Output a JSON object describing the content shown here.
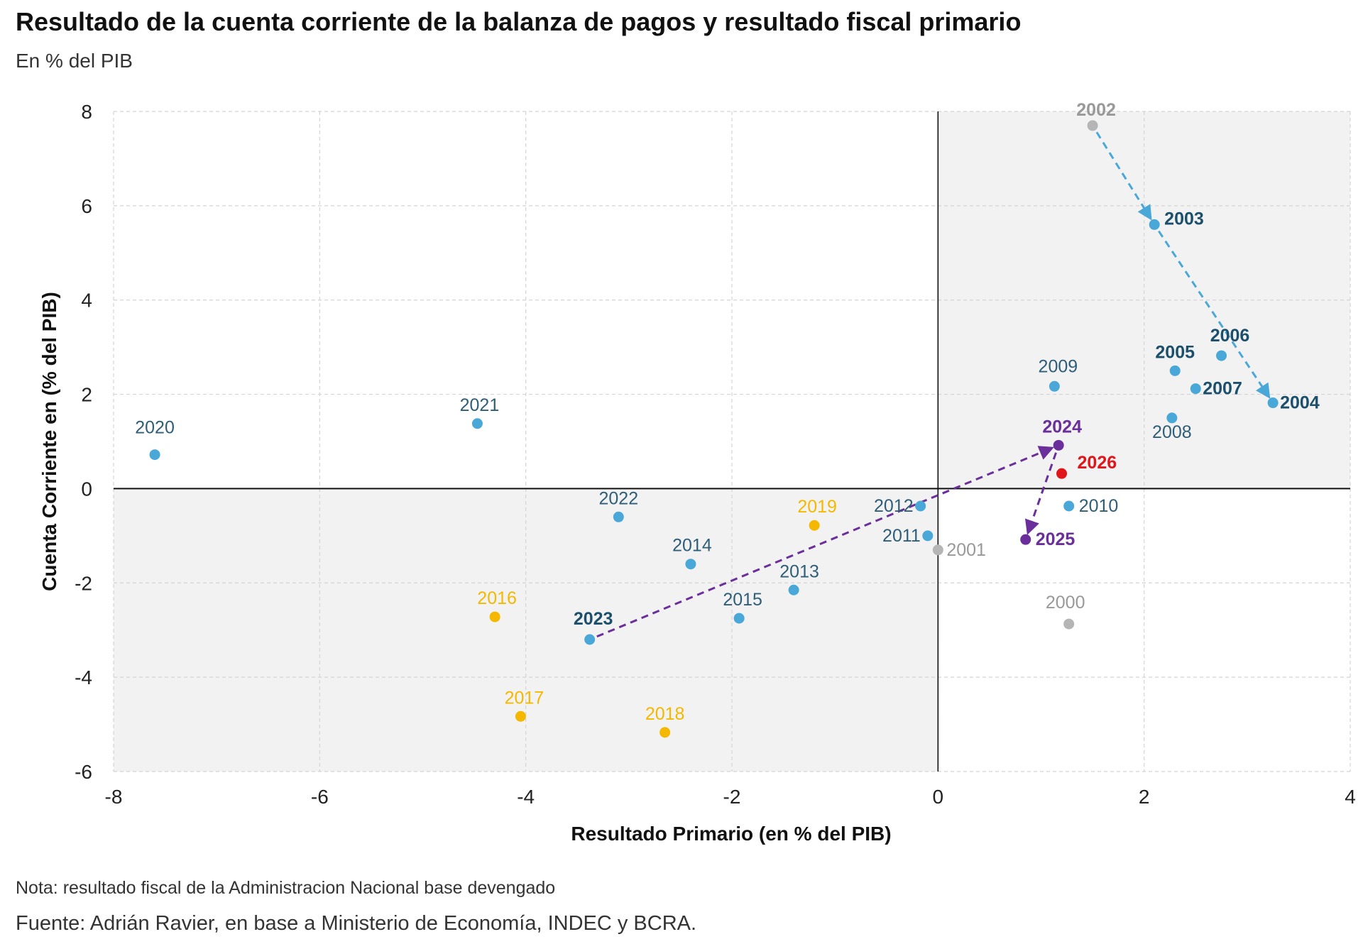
{
  "header": {
    "title": "Resultado de la cuenta corriente de la balanza de pagos y resultado fiscal primario",
    "subtitle": "En % del PIB"
  },
  "footer": {
    "note": "Nota: resultado fiscal de la Administracion Nacional base devengado",
    "source": "Fuente: Adrián Ravier, en base a Ministerio de Economía, INDEC y BCRA."
  },
  "colors": {
    "blue": "#4aa8d8",
    "dark_blue_text": "#1b4f6b",
    "yellow": "#f5b800",
    "gray": "#b5b5b5",
    "purple": "#6a2f9b",
    "red": "#e0161b",
    "shade": "#f2f2f2",
    "grid": "#d4d4d4",
    "arrow_blue": "#4aa8d8",
    "arrow_purple": "#6a2f9b"
  },
  "chart_data": {
    "type": "scatter",
    "title": "Resultado de la cuenta corriente de la balanza de pagos y resultado fiscal primario",
    "subtitle": "En % del PIB",
    "xlabel": "Resultado Primario (en % del PIB)",
    "ylabel": "Cuenta Corriente en (% del PIB)",
    "xlim": [
      -8,
      4
    ],
    "ylim": [
      -6,
      8
    ],
    "xticks": [
      "-8",
      "-6",
      "-4",
      "-2",
      "0",
      "2",
      "4"
    ],
    "yticks": [
      "8",
      "6",
      "4",
      "2",
      "0",
      "-2",
      "-4",
      "-6"
    ],
    "grid": true,
    "shaded_quadrants": [
      "x>0,y>0",
      "x<0,y<0"
    ],
    "points": [
      {
        "label": "2000",
        "x": 1.27,
        "y": -2.87,
        "color": "gray",
        "bold": false
      },
      {
        "label": "2001",
        "x": 0.0,
        "y": -1.3,
        "color": "gray",
        "bold": false
      },
      {
        "label": "2002",
        "x": 1.5,
        "y": 7.7,
        "color": "gray",
        "bold": true
      },
      {
        "label": "2003",
        "x": 2.1,
        "y": 5.6,
        "color": "blue",
        "bold": true
      },
      {
        "label": "2004",
        "x": 3.25,
        "y": 1.82,
        "color": "blue",
        "bold": true
      },
      {
        "label": "2005",
        "x": 2.3,
        "y": 2.5,
        "color": "blue",
        "bold": true
      },
      {
        "label": "2006",
        "x": 2.75,
        "y": 2.82,
        "color": "blue",
        "bold": true
      },
      {
        "label": "2007",
        "x": 2.5,
        "y": 2.12,
        "color": "blue",
        "bold": true
      },
      {
        "label": "2008",
        "x": 2.27,
        "y": 1.5,
        "color": "blue",
        "bold": false
      },
      {
        "label": "2009",
        "x": 1.13,
        "y": 2.17,
        "color": "blue",
        "bold": false
      },
      {
        "label": "2010",
        "x": 1.27,
        "y": -0.37,
        "color": "blue",
        "bold": false
      },
      {
        "label": "2011",
        "x": -0.1,
        "y": -1.0,
        "color": "blue",
        "bold": false
      },
      {
        "label": "2012",
        "x": -0.17,
        "y": -0.37,
        "color": "blue",
        "bold": false
      },
      {
        "label": "2013",
        "x": -1.4,
        "y": -2.15,
        "color": "blue",
        "bold": false
      },
      {
        "label": "2014",
        "x": -2.4,
        "y": -1.6,
        "color": "blue",
        "bold": false
      },
      {
        "label": "2015",
        "x": -1.93,
        "y": -2.75,
        "color": "blue",
        "bold": false
      },
      {
        "label": "2016",
        "x": -4.3,
        "y": -2.72,
        "color": "yellow",
        "bold": false
      },
      {
        "label": "2017",
        "x": -4.05,
        "y": -4.83,
        "color": "yellow",
        "bold": false
      },
      {
        "label": "2018",
        "x": -2.65,
        "y": -5.17,
        "color": "yellow",
        "bold": false
      },
      {
        "label": "2019",
        "x": -1.2,
        "y": -0.78,
        "color": "yellow",
        "bold": false
      },
      {
        "label": "2020",
        "x": -7.6,
        "y": 0.72,
        "color": "blue",
        "bold": false
      },
      {
        "label": "2021",
        "x": -4.47,
        "y": 1.38,
        "color": "blue",
        "bold": false
      },
      {
        "label": "2022",
        "x": -3.1,
        "y": -0.6,
        "color": "blue",
        "bold": false
      },
      {
        "label": "2023",
        "x": -3.38,
        "y": -3.2,
        "color": "blue",
        "bold": true
      },
      {
        "label": "2024",
        "x": 1.17,
        "y": 0.92,
        "color": "purple",
        "bold": true
      },
      {
        "label": "2025",
        "x": 0.85,
        "y": -1.08,
        "color": "purple",
        "bold": true
      },
      {
        "label": "2026",
        "x": 1.2,
        "y": 0.32,
        "color": "red",
        "bold": true
      }
    ],
    "arrows": [
      {
        "from": "2002",
        "to": "2003",
        "color": "arrow_blue"
      },
      {
        "from": "2003",
        "to": "2004",
        "color": "arrow_blue"
      },
      {
        "from": "2023",
        "to": "2024",
        "color": "arrow_purple"
      },
      {
        "from": "2024",
        "to": "2025",
        "color": "arrow_purple"
      }
    ]
  }
}
